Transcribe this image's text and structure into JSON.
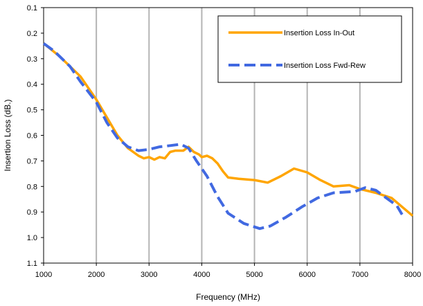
{
  "chart_data": {
    "type": "line",
    "title": "",
    "xlabel": "Frequency (MHz)",
    "ylabel": "Insertion Loss (dB.)",
    "xlim": [
      1000,
      8000
    ],
    "ylim": [
      0.1,
      1.1
    ],
    "y_inverted": true,
    "x_ticks": [
      "1000",
      "2000",
      "3000",
      "4000",
      "5000",
      "6000",
      "7000",
      "8000"
    ],
    "y_ticks": [
      "0.1",
      "0.2",
      "0.3",
      "0.4",
      "0.5",
      "0.6",
      "0.7",
      "0.8",
      "0.9",
      "1.0",
      "1.1"
    ],
    "grid": "vertical",
    "legend_position": "top-right",
    "series": [
      {
        "name": "Insertion Loss In-Out",
        "color": "#FFA500",
        "style": "solid",
        "points": [
          [
            1000,
            0.24
          ],
          [
            1300,
            0.29
          ],
          [
            1500,
            0.33
          ],
          [
            1700,
            0.37
          ],
          [
            2000,
            0.46
          ],
          [
            2200,
            0.53
          ],
          [
            2400,
            0.6
          ],
          [
            2600,
            0.65
          ],
          [
            2800,
            0.68
          ],
          [
            2900,
            0.69
          ],
          [
            3000,
            0.685
          ],
          [
            3100,
            0.695
          ],
          [
            3200,
            0.685
          ],
          [
            3300,
            0.69
          ],
          [
            3400,
            0.665
          ],
          [
            3500,
            0.66
          ],
          [
            3650,
            0.66
          ],
          [
            3750,
            0.645
          ],
          [
            3850,
            0.665
          ],
          [
            3950,
            0.675
          ],
          [
            4000,
            0.685
          ],
          [
            4100,
            0.68
          ],
          [
            4200,
            0.69
          ],
          [
            4300,
            0.71
          ],
          [
            4400,
            0.74
          ],
          [
            4500,
            0.765
          ],
          [
            4700,
            0.77
          ],
          [
            5000,
            0.775
          ],
          [
            5250,
            0.785
          ],
          [
            5500,
            0.76
          ],
          [
            5750,
            0.73
          ],
          [
            6000,
            0.745
          ],
          [
            6250,
            0.775
          ],
          [
            6500,
            0.8
          ],
          [
            6800,
            0.795
          ],
          [
            7000,
            0.81
          ],
          [
            7300,
            0.825
          ],
          [
            7600,
            0.845
          ],
          [
            7800,
            0.88
          ],
          [
            8000,
            0.915
          ]
        ]
      },
      {
        "name": "Insertion Loss Fwd-Rew",
        "color": "#4169E1",
        "style": "dashed",
        "points": [
          [
            1000,
            0.24
          ],
          [
            1200,
            0.27
          ],
          [
            1500,
            0.33
          ],
          [
            1700,
            0.39
          ],
          [
            2000,
            0.47
          ],
          [
            2200,
            0.55
          ],
          [
            2400,
            0.61
          ],
          [
            2600,
            0.645
          ],
          [
            2800,
            0.66
          ],
          [
            3000,
            0.655
          ],
          [
            3200,
            0.645
          ],
          [
            3400,
            0.64
          ],
          [
            3600,
            0.635
          ],
          [
            3750,
            0.65
          ],
          [
            3900,
            0.7
          ],
          [
            4100,
            0.76
          ],
          [
            4300,
            0.84
          ],
          [
            4500,
            0.905
          ],
          [
            4800,
            0.945
          ],
          [
            5100,
            0.965
          ],
          [
            5300,
            0.955
          ],
          [
            5600,
            0.92
          ],
          [
            5900,
            0.88
          ],
          [
            6200,
            0.845
          ],
          [
            6500,
            0.825
          ],
          [
            6900,
            0.82
          ],
          [
            7100,
            0.805
          ],
          [
            7300,
            0.815
          ],
          [
            7500,
            0.845
          ],
          [
            7700,
            0.875
          ],
          [
            7800,
            0.91
          ]
        ]
      }
    ]
  }
}
